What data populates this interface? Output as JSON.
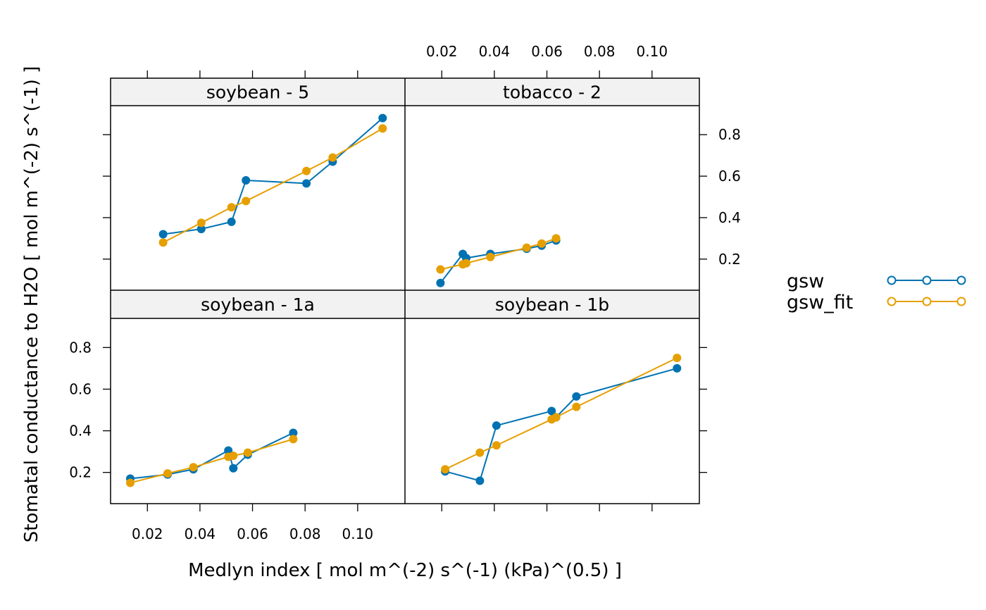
{
  "chart_data": {
    "type": "line",
    "xlabel": "Medlyn index [ mol m^(-2) s^(-1) (kPa)^(0.5) ]",
    "ylabel": "Stomatal conductance to H2O [ mol m^(-2) s^(-1) ]",
    "xlim": [
      0.006,
      0.118
    ],
    "ylim": [
      0.05,
      0.94
    ],
    "x_ticks": [
      0.02,
      0.04,
      0.06,
      0.08,
      0.1
    ],
    "x_tick_labels": [
      "0.02",
      "0.04",
      "0.06",
      "0.08",
      "0.10"
    ],
    "y_ticks": [
      0.2,
      0.4,
      0.6,
      0.8
    ],
    "y_tick_labels": [
      "0.2",
      "0.4",
      "0.6",
      "0.8"
    ],
    "grid": false,
    "legend_position": "right",
    "colors": {
      "gsw": "#0072B2",
      "gsw_fit": "#E69F00",
      "strip": "#F2F2F2"
    },
    "legend": [
      {
        "name": "gsw",
        "color": "#0072B2"
      },
      {
        "name": "gsw_fit",
        "color": "#E69F00"
      }
    ],
    "panels": [
      {
        "label": "soybean - 5",
        "row": "top",
        "col": "left",
        "series": [
          {
            "name": "gsw",
            "points": [
              [
                0.026,
                0.32
              ],
              [
                0.0405,
                0.345
              ],
              [
                0.052,
                0.38
              ],
              [
                0.0575,
                0.58
              ],
              [
                0.0805,
                0.565
              ],
              [
                0.0905,
                0.67
              ],
              [
                0.1095,
                0.88
              ]
            ]
          },
          {
            "name": "gsw_fit",
            "points": [
              [
                0.026,
                0.28
              ],
              [
                0.0405,
                0.375
              ],
              [
                0.052,
                0.45
              ],
              [
                0.0575,
                0.48
              ],
              [
                0.0805,
                0.625
              ],
              [
                0.0905,
                0.69
              ],
              [
                0.1095,
                0.83
              ]
            ]
          }
        ]
      },
      {
        "label": "tobacco - 2",
        "row": "top",
        "col": "right",
        "series": [
          {
            "name": "gsw",
            "points": [
              [
                0.0195,
                0.085
              ],
              [
                0.028,
                0.225
              ],
              [
                0.0293,
                0.205
              ],
              [
                0.0385,
                0.225
              ],
              [
                0.0523,
                0.25
              ],
              [
                0.058,
                0.265
              ],
              [
                0.0635,
                0.29
              ]
            ]
          },
          {
            "name": "gsw_fit",
            "points": [
              [
                0.0195,
                0.15
              ],
              [
                0.028,
                0.175
              ],
              [
                0.0293,
                0.18
              ],
              [
                0.0385,
                0.21
              ],
              [
                0.0523,
                0.255
              ],
              [
                0.058,
                0.275
              ],
              [
                0.0635,
                0.3
              ]
            ]
          }
        ]
      },
      {
        "label": "soybean - 1a",
        "row": "bottom",
        "col": "left",
        "series": [
          {
            "name": "gsw",
            "points": [
              [
                0.0135,
                0.17
              ],
              [
                0.0277,
                0.19
              ],
              [
                0.0375,
                0.215
              ],
              [
                0.0508,
                0.305
              ],
              [
                0.0527,
                0.22
              ],
              [
                0.0582,
                0.285
              ],
              [
                0.0755,
                0.39
              ]
            ]
          },
          {
            "name": "gsw_fit",
            "points": [
              [
                0.0135,
                0.15
              ],
              [
                0.0277,
                0.195
              ],
              [
                0.0375,
                0.225
              ],
              [
                0.0508,
                0.275
              ],
              [
                0.0527,
                0.28
              ],
              [
                0.0582,
                0.295
              ],
              [
                0.0755,
                0.36
              ]
            ]
          }
        ]
      },
      {
        "label": "soybean - 1b",
        "row": "bottom",
        "col": "right",
        "series": [
          {
            "name": "gsw",
            "points": [
              [
                0.0213,
                0.205
              ],
              [
                0.0345,
                0.16
              ],
              [
                0.0408,
                0.425
              ],
              [
                0.0618,
                0.495
              ],
              [
                0.0635,
                0.465
              ],
              [
                0.0712,
                0.565
              ],
              [
                0.1095,
                0.7
              ]
            ]
          },
          {
            "name": "gsw_fit",
            "points": [
              [
                0.0213,
                0.215
              ],
              [
                0.0345,
                0.295
              ],
              [
                0.0408,
                0.33
              ],
              [
                0.0618,
                0.455
              ],
              [
                0.0635,
                0.465
              ],
              [
                0.0712,
                0.515
              ],
              [
                0.1095,
                0.75
              ]
            ]
          }
        ]
      }
    ]
  }
}
